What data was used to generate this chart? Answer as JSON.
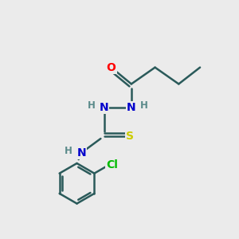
{
  "background_color": "#ebebeb",
  "bond_color": "#2a5a5a",
  "bond_width": 1.8,
  "atom_colors": {
    "O": "#ff0000",
    "N": "#0000cc",
    "S": "#cccc00",
    "Cl": "#00bb00",
    "C": "#2a5a5a",
    "H": "#5a8a8a"
  },
  "font_size_atoms": 10,
  "font_size_h": 8.5,
  "font_size_cl": 10
}
